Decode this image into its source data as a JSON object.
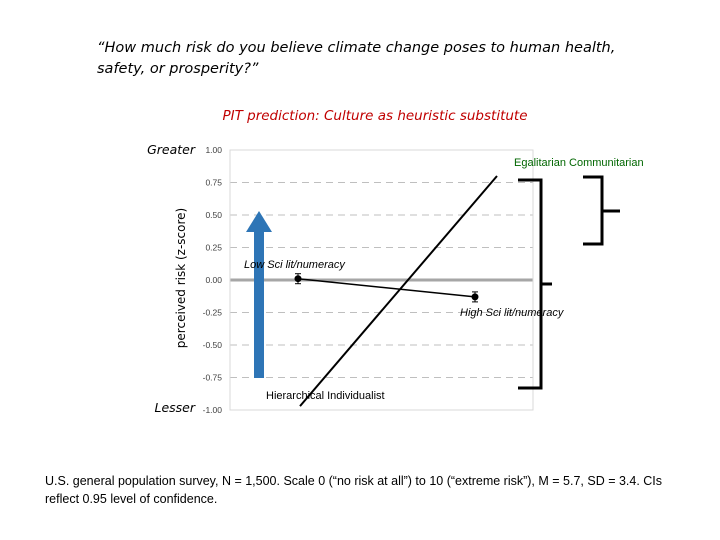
{
  "question": "“How much risk do you believe climate change poses to human health, safety, or prosperity?”",
  "footnote": "U.S. general population survey, N = 1,500. Scale 0 (“no risk at all”) to 10 (“extreme risk”), M = 5.7, SD = 3.4. CIs reflect 0.95 level of confidence.",
  "colors": {
    "title": "#c00000",
    "annotation": "#006600",
    "arrow": "#2e75b6",
    "grid": "#bfbfbf",
    "zero_line": "#a6a6a6"
  },
  "chart_data": {
    "type": "line",
    "title": "PIT prediction: Culture as heuristic substitute",
    "ylabel": "perceived risk (z-score)",
    "ylim": [
      -1.0,
      1.0
    ],
    "yticks": [
      "1.00",
      "0.75",
      "0.50",
      "0.25",
      "0.00",
      "-0.25",
      "-0.50",
      "-0.75",
      "-1.00"
    ],
    "y_end_labels": {
      "top": "Greater",
      "bottom": "Lesser"
    },
    "grid": true,
    "x_categories": [
      "Low Sci lit/numeracy",
      "High Sci lit/numeracy"
    ],
    "series": [
      {
        "name": "",
        "values": [
          0.01,
          -0.13
        ],
        "error_bars": true
      },
      {
        "name": "",
        "values": [
          -0.97,
          0.8
        ]
      }
    ],
    "annotations": [
      {
        "text": "Egalitarian Communitarian"
      },
      {
        "text": "Hierarchical Individualist"
      },
      {
        "text": "Low Sci lit/numeracy"
      },
      {
        "text": "High Sci lit/numeracy"
      }
    ]
  }
}
